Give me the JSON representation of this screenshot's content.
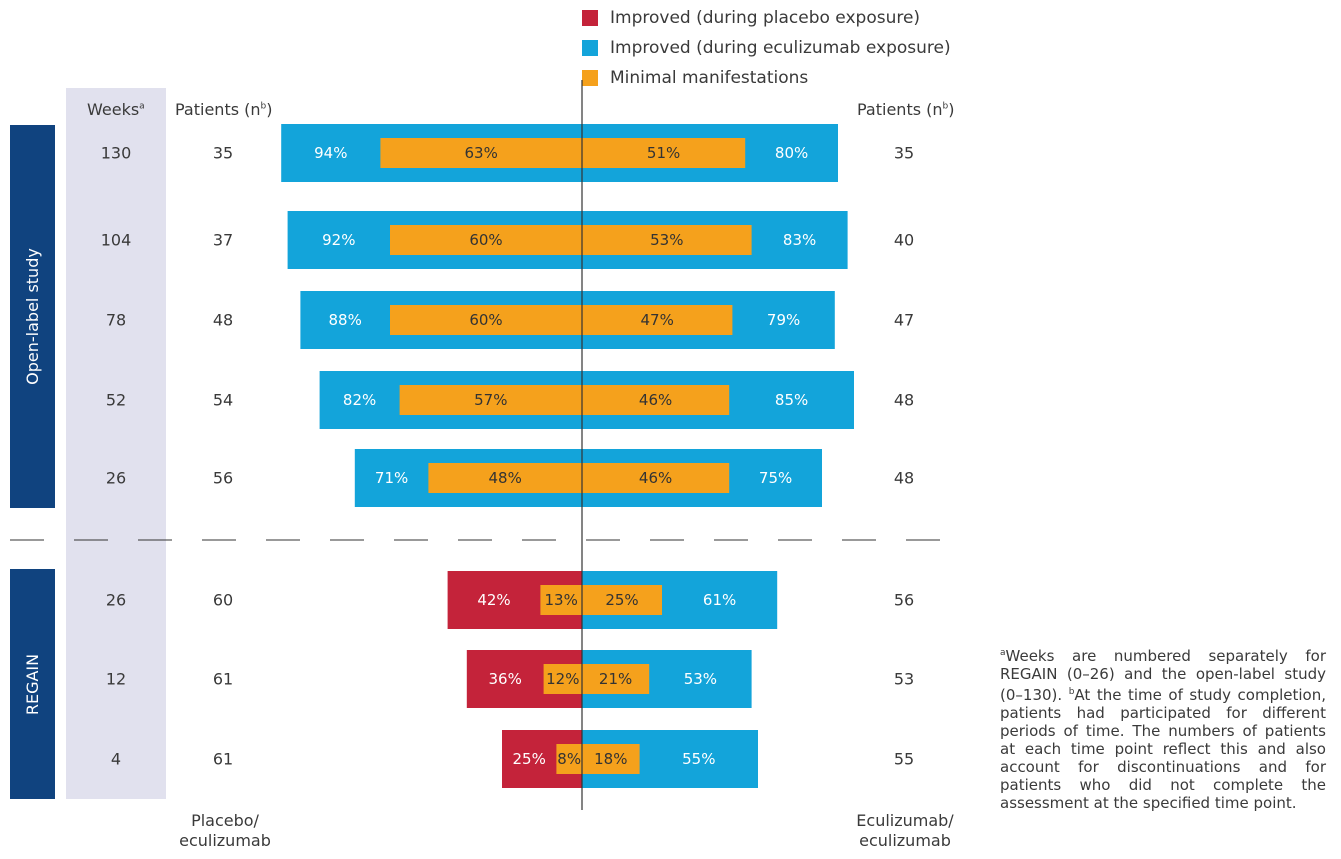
{
  "legend": [
    {
      "label": "Improved (during placebo exposure)",
      "color": "#c4233a"
    },
    {
      "label": "Improved (during eculizumab exposure)",
      "color": "#13a4da"
    },
    {
      "label": "Minimal manifestations",
      "color": "#f5a11c"
    }
  ],
  "headers": {
    "weeks": "Weeks",
    "weeks_sup": "a",
    "patients_left": "Patients (n",
    "patients_left_sup": "b",
    "patients_left_close": ")",
    "patients_right": "Patients (n",
    "patients_right_sup": "b",
    "patients_right_close": ")"
  },
  "sections": {
    "open_label": "Open-label study",
    "regain": "REGAIN"
  },
  "footer": {
    "left_line1": "Placebo/",
    "left_line2": "eculizumab",
    "right_line1": "Eculizumab/",
    "right_line2": "eculizumab"
  },
  "footnote": {
    "a_marker": "a",
    "a_text": "Weeks are numbered separately for REGAIN (0–26) and the open-label study (0–130). ",
    "b_marker": "b",
    "b_text": "At the time of study completion, patients had participated for different periods of time. The numbers of patients at each time point reflect this and also account for discontinuations and for patients who did not complete the assessment at the specified time point."
  },
  "colors": {
    "placebo": "#c4233a",
    "eculizumab": "#13a4da",
    "minimal": "#f5a11c",
    "section_bg": "#10437f",
    "weeks_band": "#e1e1ee"
  },
  "chart_data": {
    "type": "bar",
    "orientation": "horizontal-diverging",
    "series": [
      {
        "name": "Improved (during placebo exposure)"
      },
      {
        "name": "Improved (during eculizumab exposure)"
      },
      {
        "name": "Minimal manifestations"
      }
    ],
    "rows": [
      {
        "section": "Open-label study",
        "week": "130",
        "n_left": "35",
        "n_right": "35",
        "left_exposure": "eculizumab",
        "left_improved": 94,
        "left_minimal": 63,
        "right_minimal": 51,
        "right_improved": 80
      },
      {
        "section": "Open-label study",
        "week": "104",
        "n_left": "37",
        "n_right": "40",
        "left_exposure": "eculizumab",
        "left_improved": 92,
        "left_minimal": 60,
        "right_minimal": 53,
        "right_improved": 83
      },
      {
        "section": "Open-label study",
        "week": "78",
        "n_left": "48",
        "n_right": "47",
        "left_exposure": "eculizumab",
        "left_improved": 88,
        "left_minimal": 60,
        "right_minimal": 47,
        "right_improved": 79
      },
      {
        "section": "Open-label study",
        "week": "52",
        "n_left": "54",
        "n_right": "48",
        "left_exposure": "eculizumab",
        "left_improved": 82,
        "left_minimal": 57,
        "right_minimal": 46,
        "right_improved": 85
      },
      {
        "section": "Open-label study",
        "week": "26",
        "n_left": "56",
        "n_right": "48",
        "left_exposure": "eculizumab",
        "left_improved": 71,
        "left_minimal": 48,
        "right_minimal": 46,
        "right_improved": 75
      },
      {
        "section": "REGAIN",
        "week": "26",
        "n_left": "60",
        "n_right": "56",
        "left_exposure": "placebo",
        "left_improved": 42,
        "left_minimal": 13,
        "right_minimal": 25,
        "right_improved": 61
      },
      {
        "section": "REGAIN",
        "week": "12",
        "n_left": "61",
        "n_right": "53",
        "left_exposure": "placebo",
        "left_improved": 36,
        "left_minimal": 12,
        "right_minimal": 21,
        "right_improved": 53
      },
      {
        "section": "REGAIN",
        "week": "4",
        "n_left": "61",
        "n_right": "55",
        "left_exposure": "placebo",
        "left_improved": 25,
        "left_minimal": 8,
        "right_minimal": 18,
        "right_improved": 55
      }
    ]
  }
}
